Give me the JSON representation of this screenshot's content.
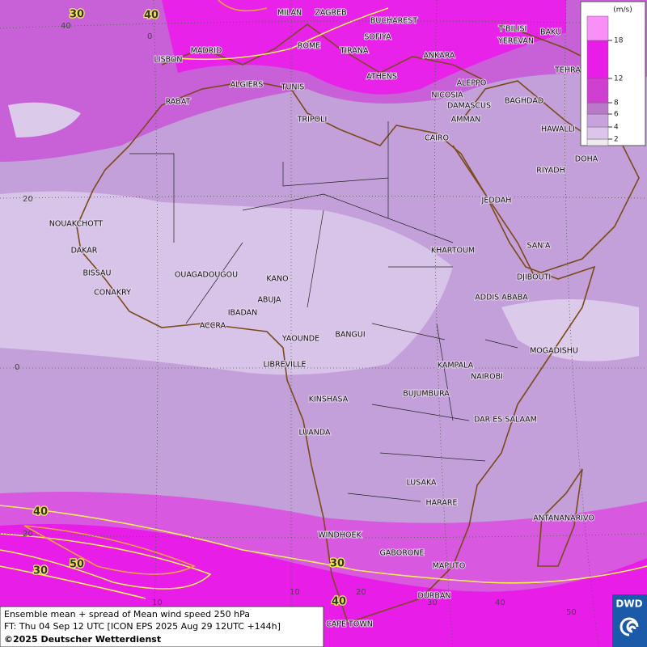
{
  "legend": {
    "unit": "(m/s)",
    "ticks": [
      2,
      4,
      6,
      8,
      12,
      18
    ],
    "colors": [
      "#eeeaf0",
      "#dcc4ea",
      "#c8a2dc",
      "#b87ac8",
      "#d040d0",
      "#e81ee8",
      "#f890f8"
    ]
  },
  "cities": [
    "MILAN",
    "ZAGREB",
    "BUCHAREST",
    "T'BILISI",
    "BAKU",
    "MADRID",
    "ROME",
    "SOFIYA",
    "YEREVAN",
    "LISBON",
    "TIRANA",
    "ANKARA",
    "TEHRA",
    "ALGIERS",
    "TUNIS",
    "ATHENS",
    "ALEPPO",
    "NICOSIA",
    "BAGHDAD",
    "RABAT",
    "DAMASCUS",
    "AMMAN",
    "TRIPOLI",
    "HAWALLI",
    "CAIRO",
    "DOHA",
    "RIYADH",
    "JEDDAH",
    "NOUAKCHOTT",
    "SAN'A",
    "KHARTOUM",
    "DAKAR",
    "BISSAU",
    "OUAGADOUGOU",
    "DJIBOUTI",
    "KANO",
    "CONAKRY",
    "ABUJA",
    "ADDIS ABABA",
    "IBADAN",
    "ACCRA",
    "BANGUI",
    "YAOUNDE",
    "MOGADISHU",
    "LIBREVILLE",
    "KAMPALA",
    "NAIROBI",
    "KINSHASA",
    "BUJUMBURA",
    "DAR ES SALAAM",
    "LUANDA",
    "LUSAKA",
    "HARARE",
    "ANTANANARIVO",
    "WINDHOEK",
    "GABORONE",
    "MAPUTO",
    "DURBAN",
    "CAPE TOWN"
  ],
  "grid_labels": [
    "40",
    "20",
    "0",
    "20",
    "10",
    "0",
    "10",
    "20",
    "30",
    "40",
    "50"
  ],
  "contour_labels": [
    "30",
    "40",
    "40",
    "50",
    "30",
    "30",
    "40"
  ],
  "caption": [
    "Ensemble mean + spread of Mean wind speed 250 hPa",
    "FT: Thu 04 Sep 12 UTC [ICON EPS 2025 Aug 29 12UTC +144h]",
    "©2025 Deutscher Wetterdienst"
  ],
  "logo": "DWD"
}
